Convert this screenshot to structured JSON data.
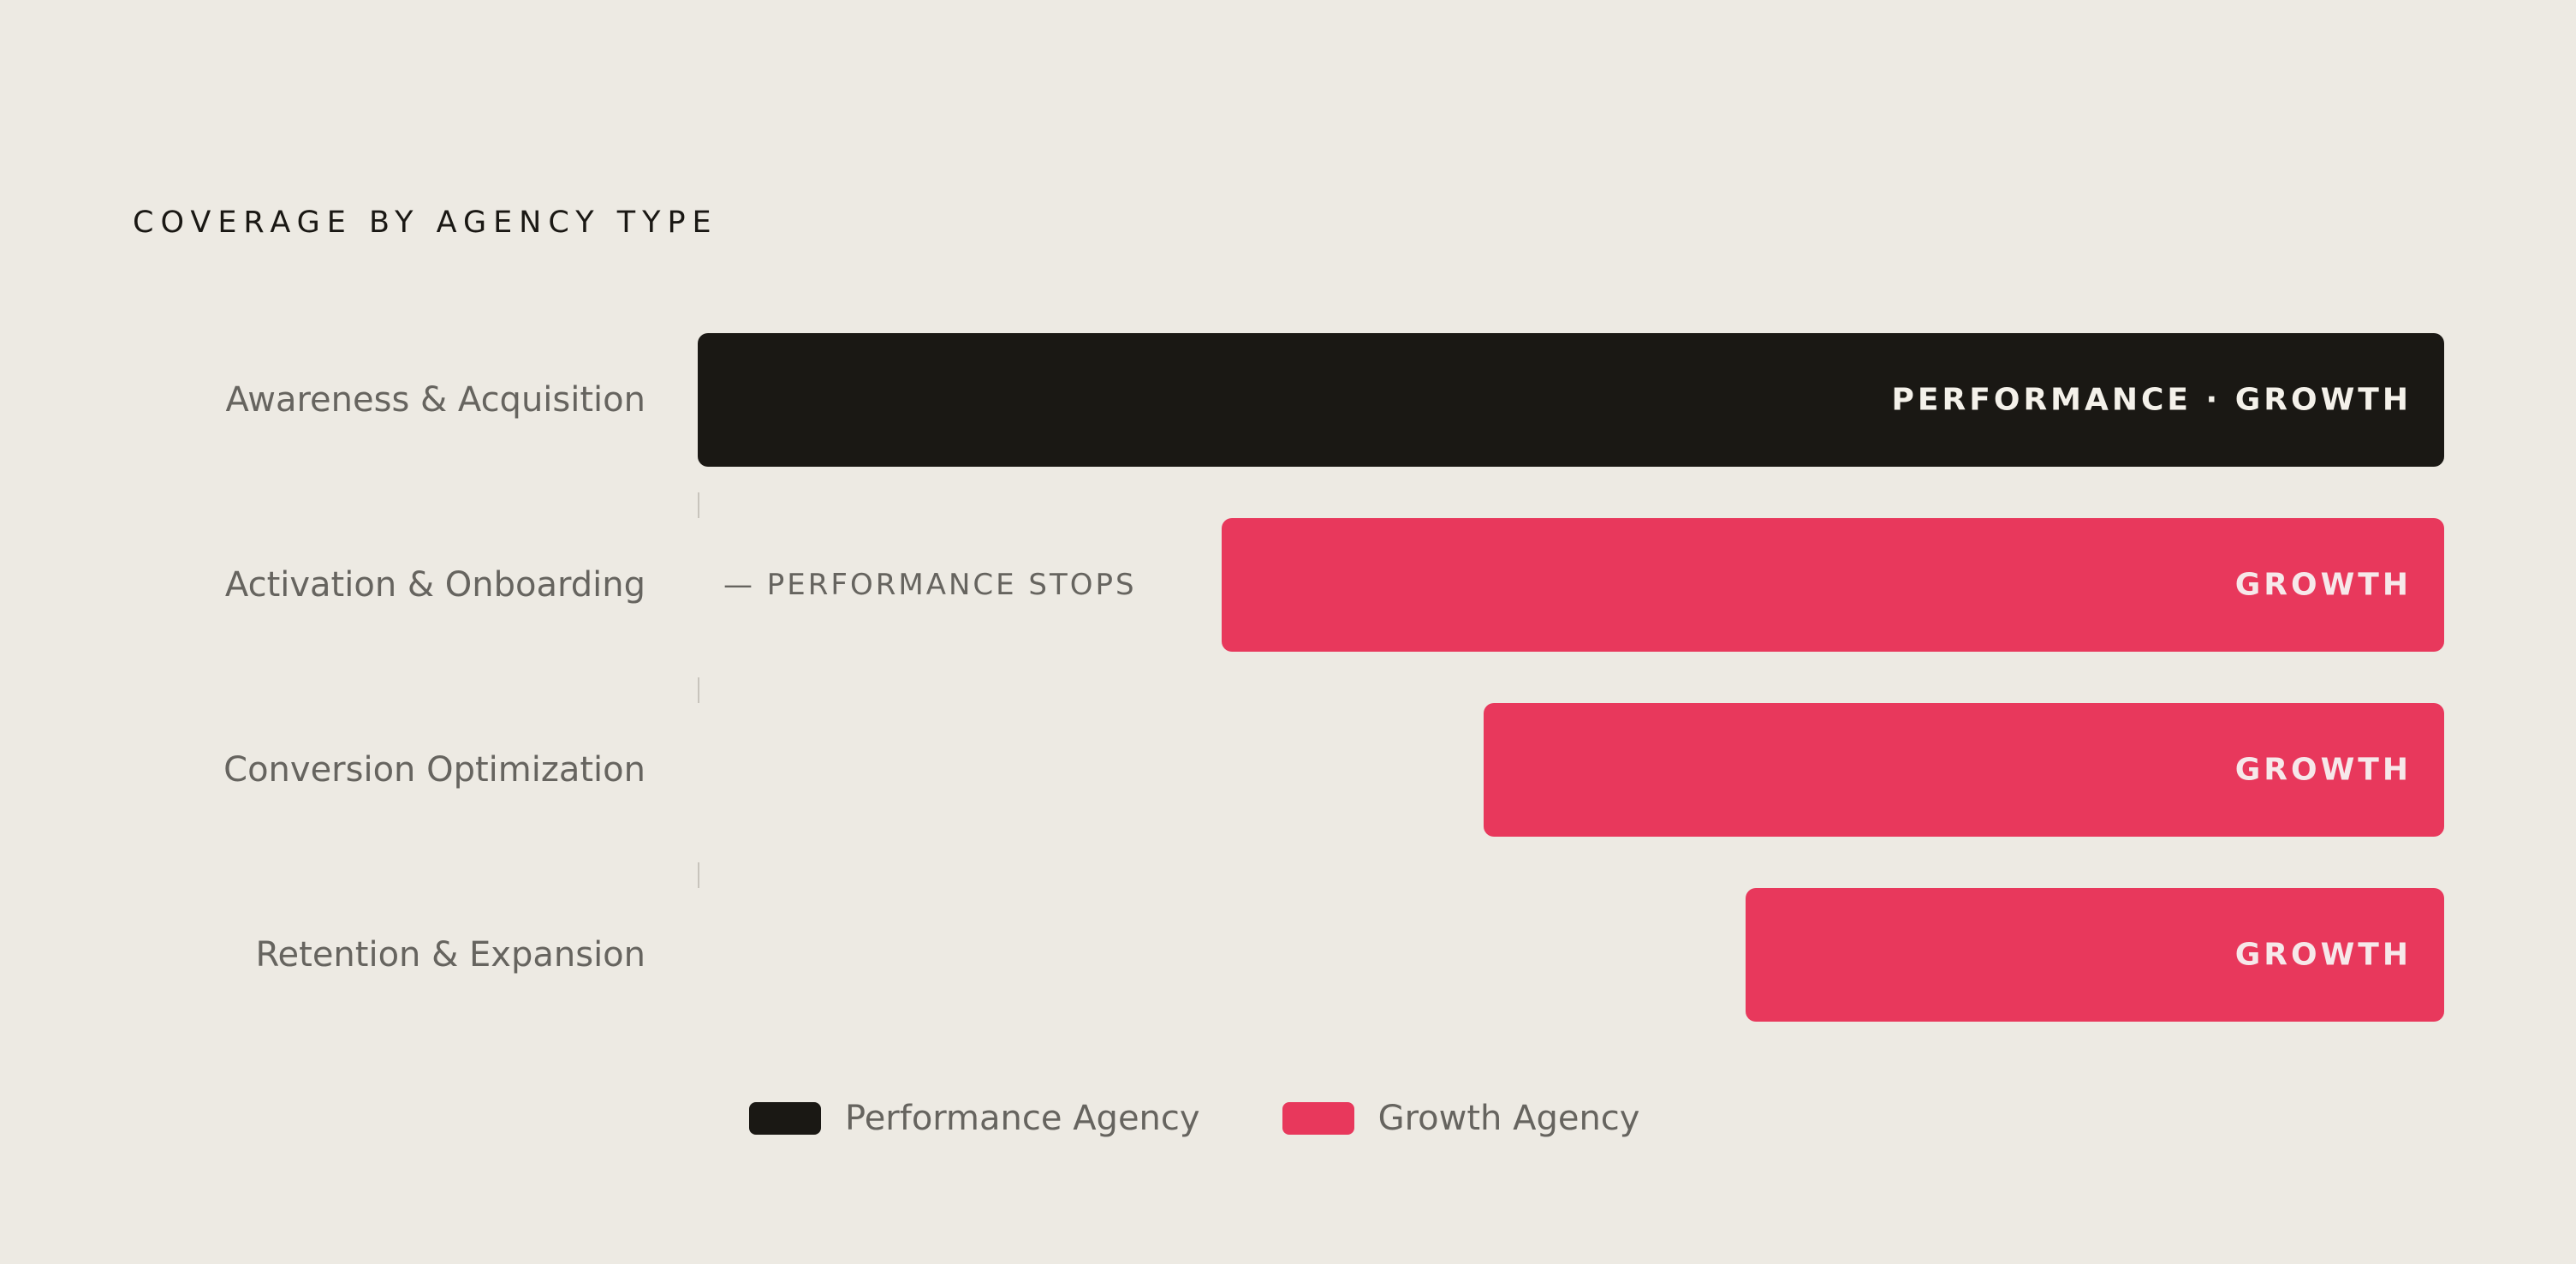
{
  "chart_data": {
    "type": "bar",
    "orientation": "horizontal",
    "title": "COVERAGE BY AGENCY TYPE",
    "categories": [
      "Awareness & Acquisition",
      "Activation & Onboarding",
      "Conversion Optimization",
      "Retention & Expansion"
    ],
    "bars": [
      {
        "category": "Awareness & Acquisition",
        "label": "PERFORMANCE · GROWTH",
        "series": "Performance Agency",
        "coverage": 1.0
      },
      {
        "category": "Activation & Onboarding",
        "label": "GROWTH",
        "series": "Growth Agency",
        "coverage": 0.7
      },
      {
        "category": "Conversion Optimization",
        "label": "GROWTH",
        "series": "Growth Agency",
        "coverage": 0.55
      },
      {
        "category": "Retention & Expansion",
        "label": "GROWTH",
        "series": "Growth Agency",
        "coverage": 0.4
      }
    ],
    "annotations": [
      {
        "category": "Activation & Onboarding",
        "text": "— PERFORMANCE STOPS"
      }
    ],
    "legend": {
      "position": "bottom",
      "items": [
        {
          "name": "Performance Agency",
          "color": "#1A1814"
        },
        {
          "name": "Growth Agency",
          "color": "#E8385C"
        }
      ]
    },
    "grid": false
  },
  "colors": {
    "background": "#EDEAE3",
    "performance": "#1A1814",
    "growth": "#E8385C"
  }
}
